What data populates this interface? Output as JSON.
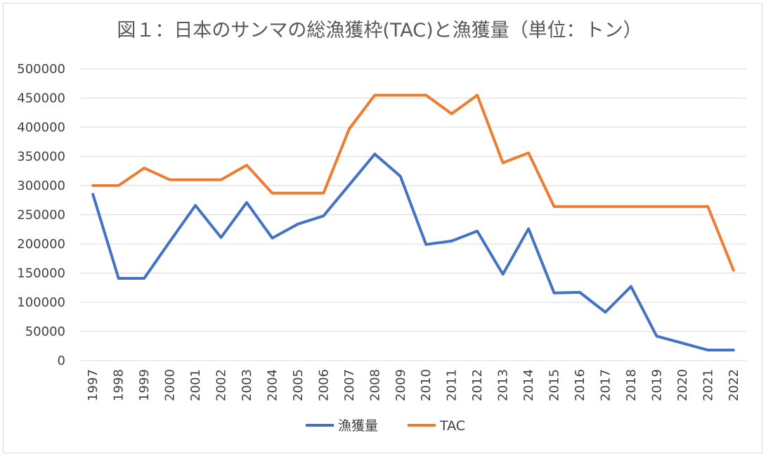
{
  "chart_data": {
    "type": "line",
    "title": "図１：日本のサンマの総漁獲枠(TAC)と漁獲量（単位：トン）",
    "xlabel": "",
    "ylabel": "",
    "ylim": [
      0,
      500000
    ],
    "yticks": [
      0,
      50000,
      100000,
      150000,
      200000,
      250000,
      300000,
      350000,
      400000,
      450000,
      500000
    ],
    "grid": true,
    "legend_position": "bottom",
    "categories": [
      "1997",
      "1998",
      "1999",
      "2000",
      "2001",
      "2002",
      "2003",
      "2004",
      "2005",
      "2006",
      "2007",
      "2008",
      "2009",
      "2010",
      "2011",
      "2012",
      "2013",
      "2014",
      "2015",
      "2016",
      "2017",
      "2018",
      "2019",
      "2020",
      "2021",
      "2022"
    ],
    "series": [
      {
        "name": "漁獲量",
        "color": "#4472c4",
        "values": [
          285000,
          141000,
          141000,
          204000,
          266000,
          211000,
          271000,
          210000,
          234000,
          248000,
          301000,
          354000,
          316000,
          199000,
          205000,
          222000,
          148000,
          226000,
          116000,
          117000,
          83000,
          127000,
          42000,
          30000,
          18000,
          18000
        ]
      },
      {
        "name": "TAC",
        "color": "#ed7d31",
        "values": [
          300000,
          300000,
          330000,
          310000,
          310000,
          310000,
          335000,
          287000,
          287000,
          287000,
          397000,
          455000,
          455000,
          455000,
          423000,
          455000,
          339000,
          356000,
          264000,
          264000,
          264000,
          264000,
          264000,
          264000,
          264000,
          155000
        ]
      }
    ]
  }
}
